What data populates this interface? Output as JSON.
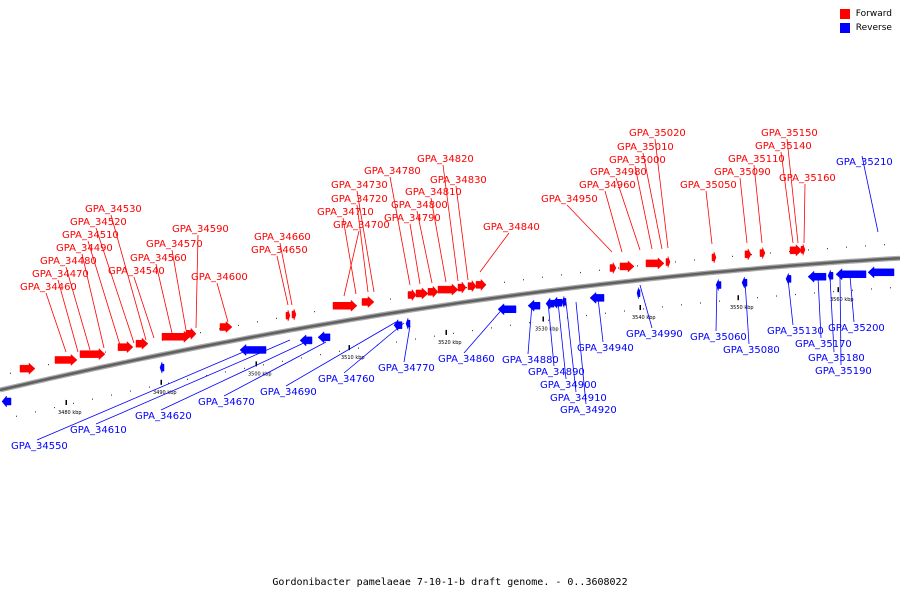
{
  "caption": "Gordonibacter pamelaeae 7-10-1-b draft genome. - 0..3608022",
  "legend": [
    {
      "label": "Forward",
      "color": "#ff0000"
    },
    {
      "label": "Reverse",
      "color": "#0000ff"
    }
  ],
  "colors": {
    "forward": "#ff0000",
    "reverse": "#0000ff",
    "backbone": "#808080"
  },
  "ticks": [
    "3480 kbp",
    "3490 kbp",
    "3500 kbp",
    "3510 kbp",
    "3520 kbp",
    "3530 kbp",
    "3540 kbp",
    "3550 kbp",
    "3560 kbp"
  ],
  "forward_genes": [
    "GPA_34460",
    "GPA_34470",
    "GPA_34480",
    "GPA_34490",
    "GPA_34510",
    "GPA_34520",
    "GPA_34530",
    "GPA_34540",
    "GPA_34560",
    "GPA_34570",
    "GPA_34590",
    "GPA_34600",
    "GPA_34650",
    "GPA_34660",
    "GPA_34700",
    "GPA_34710",
    "GPA_34720",
    "GPA_34730",
    "GPA_34780",
    "GPA_34790",
    "GPA_34800",
    "GPA_34810",
    "GPA_34820",
    "GPA_34830",
    "GPA_34840",
    "GPA_34950",
    "GPA_34960",
    "GPA_34980",
    "GPA_35000",
    "GPA_35010",
    "GPA_35020",
    "GPA_35050",
    "GPA_35090",
    "GPA_35110",
    "GPA_35140",
    "GPA_35150",
    "GPA_35160"
  ],
  "reverse_genes": [
    "GPA_34550",
    "GPA_34610",
    "GPA_34620",
    "GPA_34670",
    "GPA_34690",
    "GPA_34760",
    "GPA_34770",
    "GPA_34860",
    "GPA_34880",
    "GPA_34890",
    "GPA_34900",
    "GPA_34910",
    "GPA_34920",
    "GPA_34940",
    "GPA_34990",
    "GPA_35060",
    "GPA_35080",
    "GPA_35130",
    "GPA_35170",
    "GPA_35180",
    "GPA_35190",
    "GPA_35200",
    "GPA_35210"
  ]
}
